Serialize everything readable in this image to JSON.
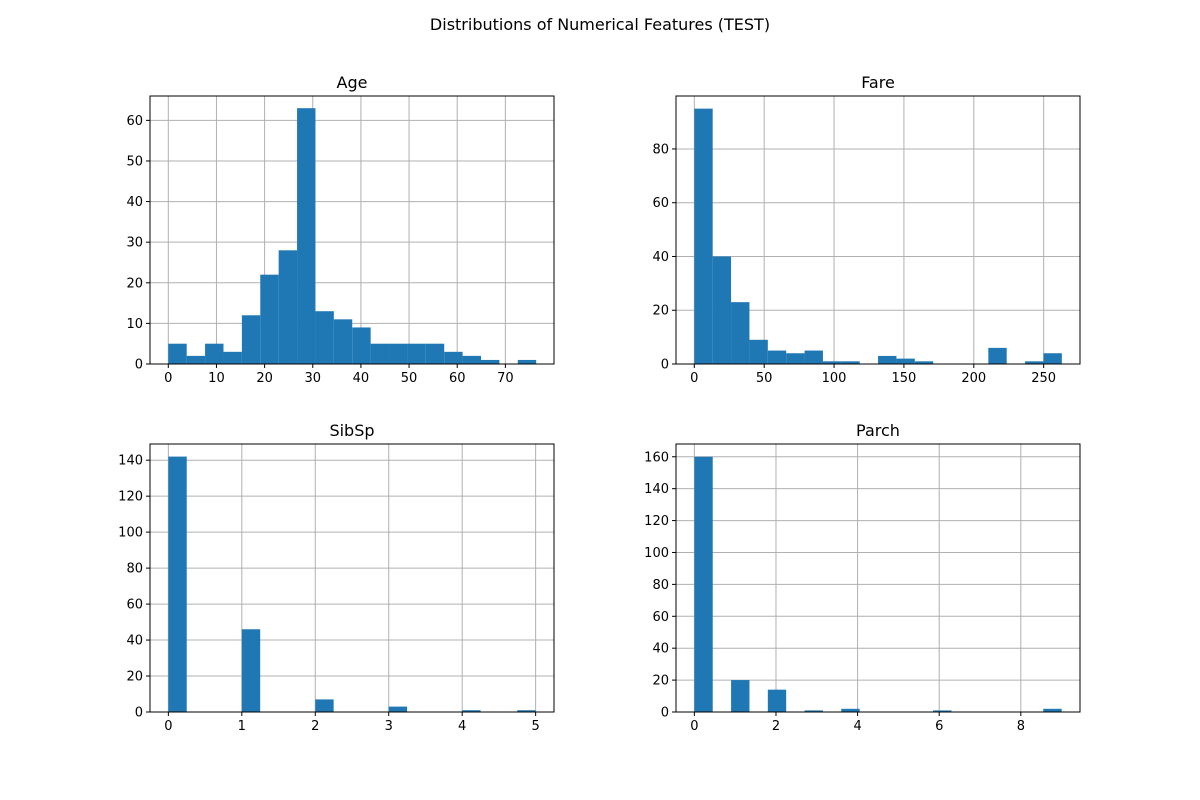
{
  "suptitle": "Distributions of Numerical Features (TEST)",
  "colors": {
    "bar": "#1f77b4",
    "grid": "#b0b0b0"
  },
  "chart_data": [
    {
      "type": "bar",
      "title": "Age",
      "xlabel": "",
      "ylabel": "",
      "grid": true,
      "xlim": [
        -3.8,
        80.1
      ],
      "ylim": [
        0,
        66
      ],
      "xticks": [
        0,
        10,
        20,
        30,
        40,
        50,
        60,
        70
      ],
      "yticks": [
        0,
        10,
        20,
        30,
        40,
        50,
        60
      ],
      "bin_edges": [
        0,
        3.82,
        7.64,
        11.46,
        15.28,
        19.1,
        22.92,
        26.74,
        30.56,
        34.38,
        38.2,
        42.02,
        45.84,
        49.66,
        53.48,
        57.3,
        61.12,
        64.94,
        68.76,
        72.58,
        76.4
      ],
      "values": [
        5,
        2,
        5,
        3,
        12,
        22,
        28,
        63,
        13,
        11,
        9,
        5,
        5,
        5,
        5,
        3,
        2,
        1,
        0,
        1
      ]
    },
    {
      "type": "bar",
      "title": "Fare",
      "xlabel": "",
      "ylabel": "",
      "grid": true,
      "xlim": [
        -13.1,
        276.0
      ],
      "ylim": [
        0,
        99.7
      ],
      "xticks": [
        0,
        50,
        100,
        150,
        200,
        250
      ],
      "yticks": [
        0,
        20,
        40,
        60,
        80
      ],
      "bin_edges": [
        0,
        13.15,
        26.3,
        39.45,
        52.6,
        65.75,
        78.9,
        92.05,
        105.2,
        118.35,
        131.5,
        144.65,
        157.8,
        170.95,
        184.1,
        197.25,
        210.4,
        223.55,
        236.7,
        249.85,
        263.0
      ],
      "values": [
        95,
        40,
        23,
        9,
        5,
        4,
        5,
        1,
        1,
        0,
        3,
        2,
        1,
        0,
        0,
        0,
        6,
        0,
        1,
        4
      ]
    },
    {
      "type": "bar",
      "title": "SibSp",
      "xlabel": "",
      "ylabel": "",
      "grid": true,
      "xlim": [
        -0.25,
        5.25
      ],
      "ylim": [
        0,
        149
      ],
      "xticks": [
        0,
        1,
        2,
        3,
        4,
        5
      ],
      "yticks": [
        0,
        20,
        40,
        60,
        80,
        100,
        120,
        140
      ],
      "bin_edges": [
        0,
        0.25,
        0.5,
        0.75,
        1.0,
        1.25,
        1.5,
        1.75,
        2.0,
        2.25,
        2.5,
        2.75,
        3.0,
        3.25,
        3.5,
        3.75,
        4.0,
        4.25,
        4.5,
        4.75,
        5.0
      ],
      "values": [
        142,
        0,
        0,
        0,
        46,
        0,
        0,
        0,
        7,
        0,
        0,
        0,
        3,
        0,
        0,
        0,
        1,
        0,
        0,
        1
      ]
    },
    {
      "type": "bar",
      "title": "Parch",
      "xlabel": "",
      "ylabel": "",
      "grid": true,
      "xlim": [
        -0.45,
        9.45
      ],
      "ylim": [
        0,
        168
      ],
      "xticks": [
        0,
        2,
        4,
        6,
        8
      ],
      "yticks": [
        0,
        20,
        40,
        60,
        80,
        100,
        120,
        140,
        160
      ],
      "bin_edges": [
        0,
        0.45,
        0.9,
        1.35,
        1.8,
        2.25,
        2.7,
        3.15,
        3.6,
        4.05,
        4.5,
        4.95,
        5.4,
        5.85,
        6.3,
        6.75,
        7.2,
        7.65,
        8.1,
        8.55,
        9.0
      ],
      "values": [
        160,
        0,
        20,
        0,
        14,
        0,
        1,
        0,
        2,
        0,
        0,
        0,
        0,
        1,
        0,
        0,
        0,
        0,
        0,
        2
      ]
    }
  ]
}
